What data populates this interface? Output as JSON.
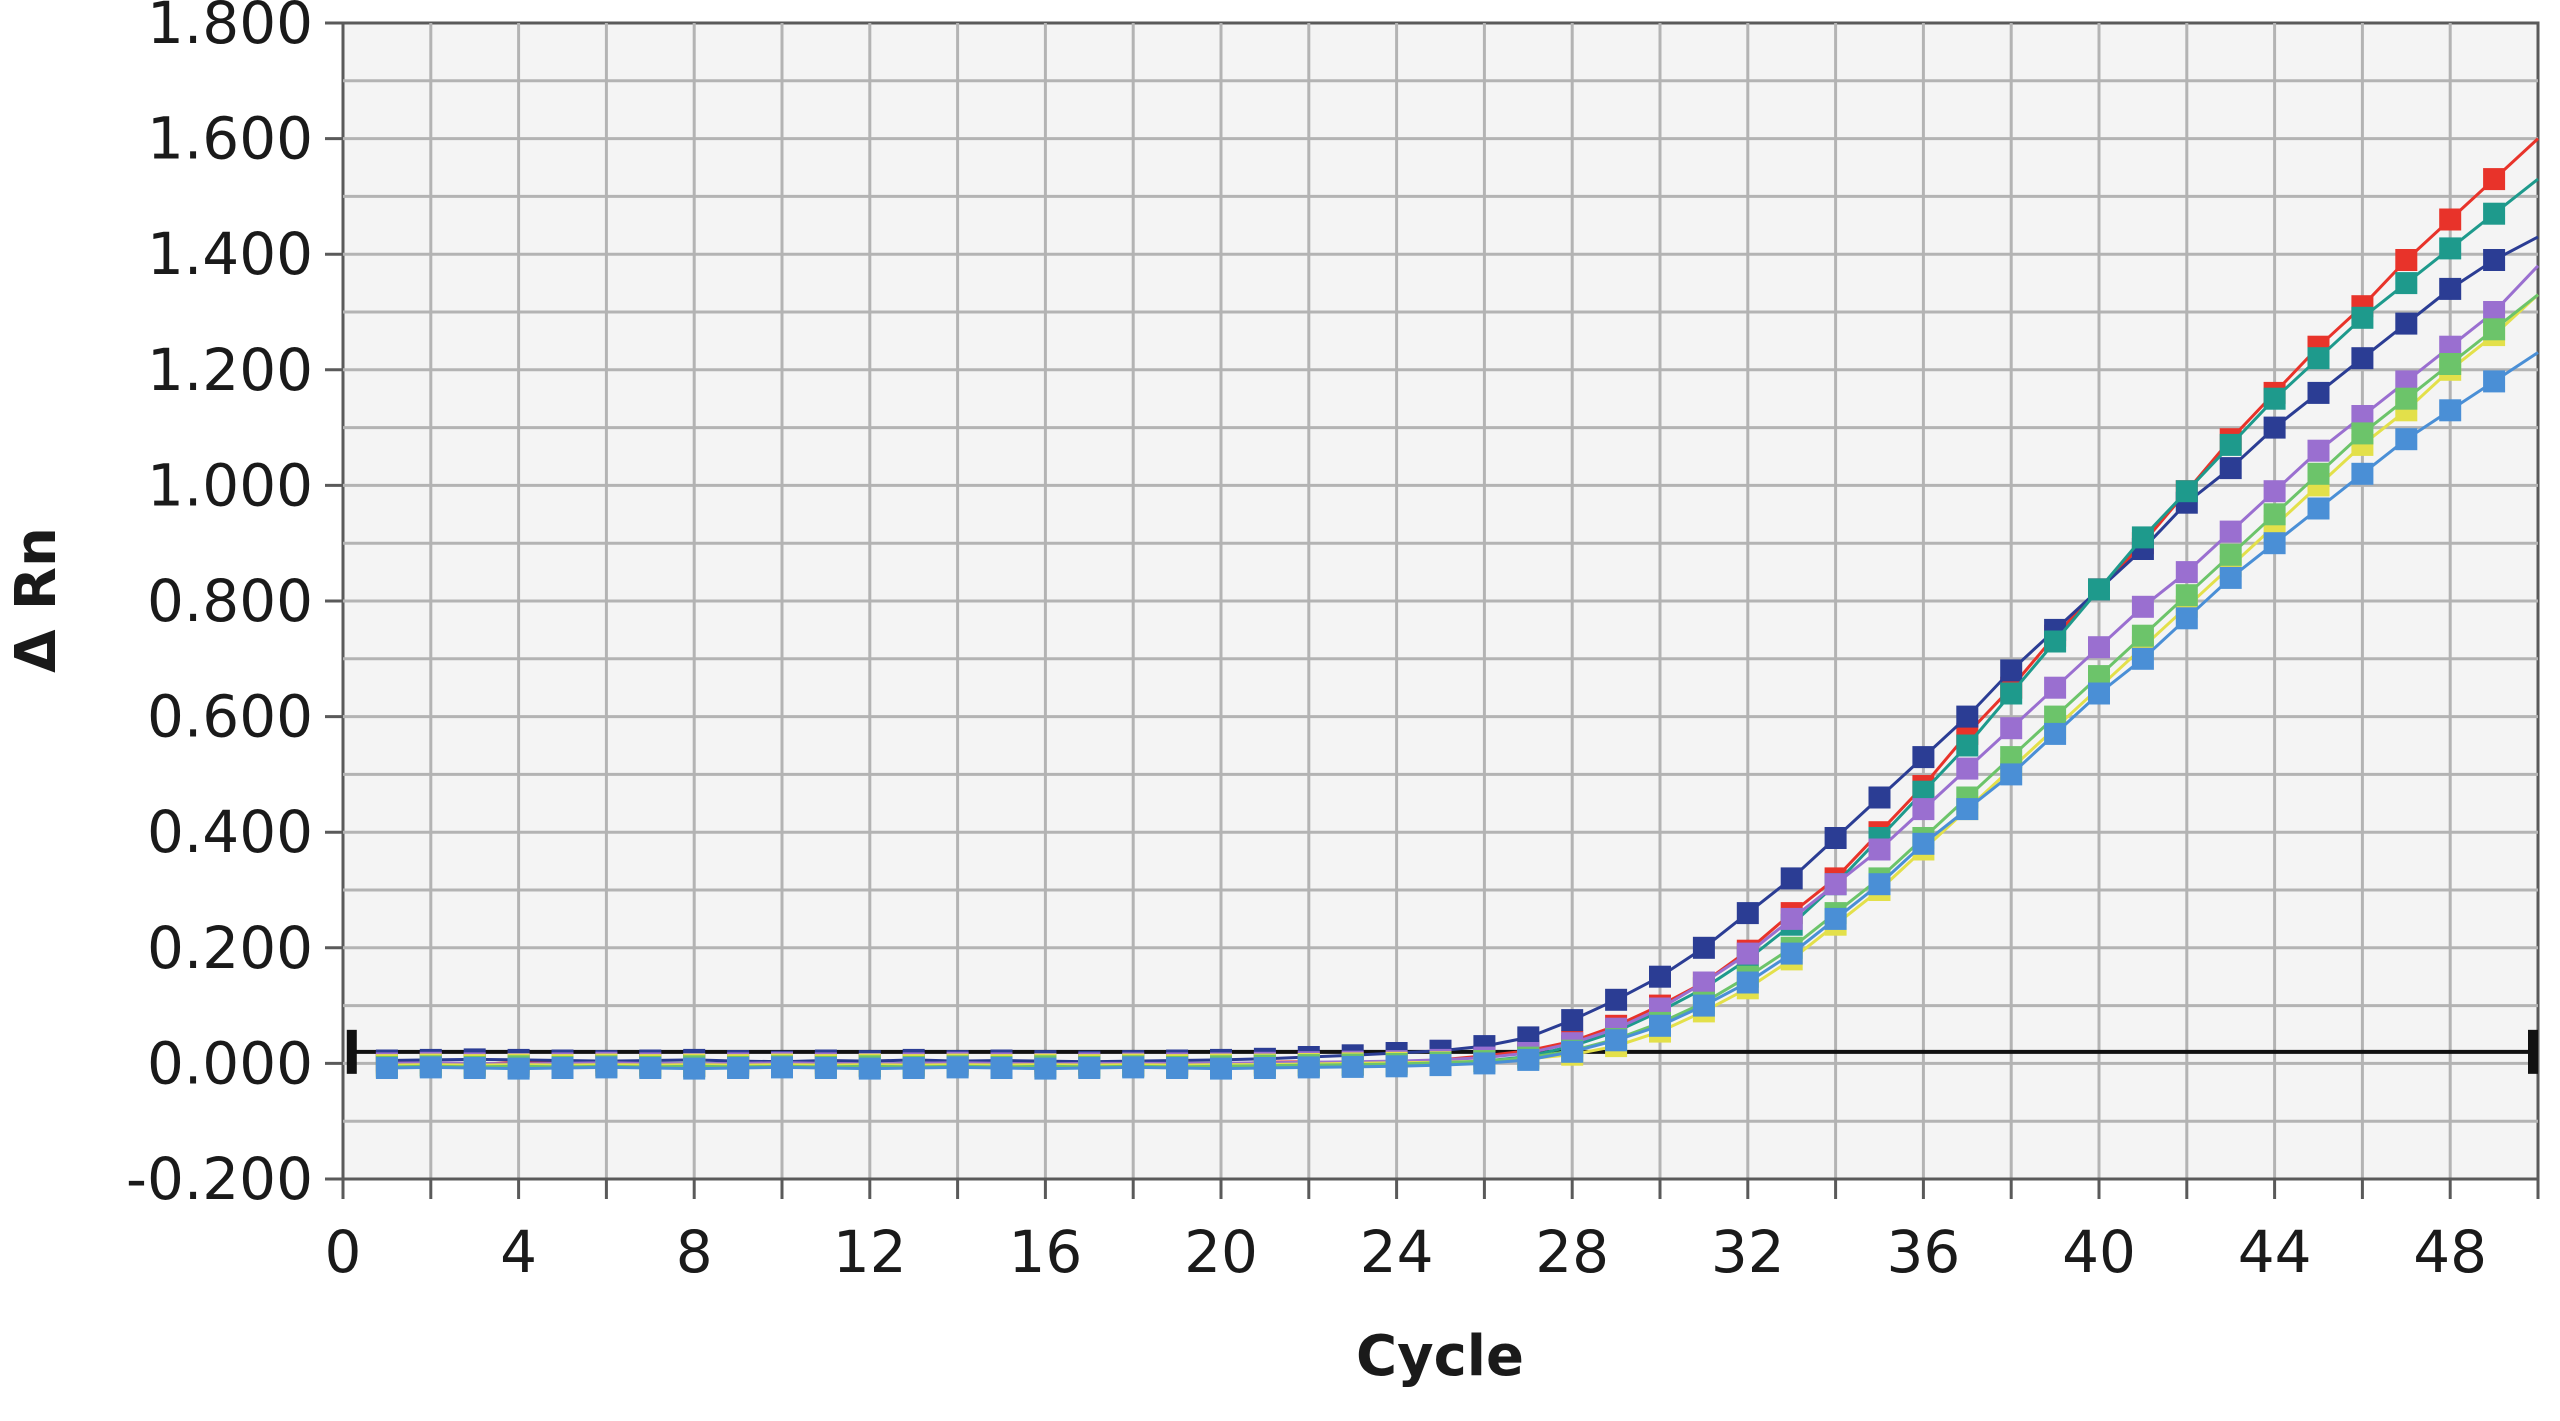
{
  "chart_data": {
    "type": "line",
    "title": "",
    "xlabel": "Cycle",
    "ylabel": "Δ Rn",
    "xlim": [
      0,
      50
    ],
    "ylim": [
      -0.2,
      1.8
    ],
    "xticks": [
      0,
      4,
      8,
      12,
      16,
      20,
      24,
      28,
      32,
      36,
      40,
      44,
      48
    ],
    "yticks": [
      -0.2,
      0.0,
      0.2,
      0.4,
      0.6,
      0.8,
      1.0,
      1.2,
      1.4,
      1.6,
      1.8
    ],
    "x_tick_labels": [
      "0",
      "4",
      "8",
      "12",
      "16",
      "20",
      "24",
      "28",
      "32",
      "36",
      "40",
      "44",
      "48"
    ],
    "y_tick_labels": [
      "-0.200",
      "0.000",
      "0.200",
      "0.400",
      "0.600",
      "0.800",
      "1.000",
      "1.200",
      "1.400",
      "1.600",
      "1.800"
    ],
    "grid": true,
    "marker": "square",
    "threshold": {
      "value": 0.02
    },
    "x": [
      1,
      2,
      3,
      4,
      5,
      6,
      7,
      8,
      9,
      10,
      11,
      12,
      13,
      14,
      15,
      16,
      17,
      18,
      19,
      20,
      21,
      22,
      23,
      24,
      25,
      26,
      27,
      28,
      29,
      30,
      31,
      32,
      33,
      34,
      35,
      36,
      37,
      38,
      39,
      40,
      41,
      42,
      43,
      44,
      45,
      46,
      47,
      48,
      49,
      50
    ],
    "series": [
      {
        "color": "#e8332a",
        "values": [
          0.002,
          0.001,
          -0.002,
          0.002,
          0.003,
          -0.003,
          -0.002,
          -0.004,
          0.001,
          0.002,
          0.001,
          -0.003,
          -0.002,
          -0.001,
          0.002,
          0.001,
          -0.001,
          -0.003,
          -0.002,
          -0.002,
          0.002,
          0.003,
          -0.001,
          0.002,
          0.006,
          0.013,
          0.022,
          0.038,
          0.065,
          0.1,
          0.14,
          0.195,
          0.26,
          0.32,
          0.4,
          0.48,
          0.57,
          0.65,
          0.74,
          0.82,
          0.9,
          0.99,
          1.08,
          1.16,
          1.24,
          1.31,
          1.39,
          1.46,
          1.53,
          1.6
        ]
      },
      {
        "color": "#2b3d94",
        "values": [
          0.005,
          0.006,
          0.007,
          0.006,
          0.005,
          0.004,
          0.005,
          0.006,
          0.004,
          0.003,
          0.005,
          0.004,
          0.006,
          0.004,
          0.005,
          0.004,
          0.003,
          0.004,
          0.005,
          0.006,
          0.008,
          0.011,
          0.014,
          0.018,
          0.022,
          0.03,
          0.045,
          0.075,
          0.11,
          0.15,
          0.2,
          0.26,
          0.32,
          0.39,
          0.46,
          0.53,
          0.6,
          0.68,
          0.75,
          0.82,
          0.89,
          0.97,
          1.03,
          1.1,
          1.16,
          1.22,
          1.28,
          1.34,
          1.39,
          1.43
        ]
      },
      {
        "color": "#1e9a8c",
        "values": [
          -0.004,
          -0.003,
          -0.004,
          -0.005,
          -0.004,
          -0.003,
          -0.004,
          -0.005,
          -0.004,
          -0.003,
          -0.004,
          -0.005,
          -0.004,
          -0.003,
          -0.004,
          -0.005,
          -0.003,
          -0.004,
          -0.005,
          -0.004,
          -0.003,
          -0.004,
          -0.003,
          -0.002,
          0.0,
          0.004,
          0.012,
          0.03,
          0.055,
          0.09,
          0.13,
          0.18,
          0.24,
          0.31,
          0.39,
          0.47,
          0.55,
          0.64,
          0.73,
          0.82,
          0.91,
          0.99,
          1.07,
          1.15,
          1.22,
          1.29,
          1.35,
          1.41,
          1.47,
          1.53
        ]
      },
      {
        "color": "#9a6fd0",
        "values": [
          0.0,
          0.001,
          0.0,
          -0.001,
          0.0,
          0.001,
          0.0,
          -0.001,
          0.0,
          0.001,
          0.0,
          -0.001,
          0.0,
          0.001,
          0.0,
          -0.001,
          0.0,
          0.0,
          0.0,
          0.0,
          0.001,
          0.002,
          0.003,
          0.004,
          0.006,
          0.01,
          0.018,
          0.035,
          0.06,
          0.095,
          0.14,
          0.19,
          0.25,
          0.31,
          0.37,
          0.44,
          0.51,
          0.58,
          0.65,
          0.72,
          0.79,
          0.85,
          0.92,
          0.99,
          1.06,
          1.12,
          1.18,
          1.24,
          1.3,
          1.38
        ]
      },
      {
        "color": "#e3e04a",
        "values": [
          -0.003,
          -0.002,
          -0.003,
          -0.002,
          -0.003,
          -0.002,
          -0.003,
          -0.002,
          -0.003,
          -0.002,
          -0.003,
          -0.002,
          -0.003,
          -0.002,
          -0.003,
          -0.002,
          -0.003,
          -0.002,
          -0.003,
          -0.002,
          -0.002,
          -0.001,
          0.0,
          0.001,
          0.002,
          0.004,
          0.008,
          0.015,
          0.03,
          0.055,
          0.09,
          0.13,
          0.18,
          0.24,
          0.3,
          0.37,
          0.44,
          0.51,
          0.58,
          0.65,
          0.72,
          0.79,
          0.86,
          0.93,
          1.0,
          1.07,
          1.13,
          1.2,
          1.26,
          1.33
        ]
      },
      {
        "color": "#6cc46a",
        "values": [
          -0.006,
          -0.005,
          -0.006,
          -0.005,
          -0.006,
          -0.005,
          -0.006,
          -0.005,
          -0.006,
          -0.005,
          -0.006,
          -0.005,
          -0.006,
          -0.005,
          -0.006,
          -0.005,
          -0.006,
          -0.005,
          -0.006,
          -0.005,
          -0.004,
          -0.003,
          -0.002,
          -0.001,
          0.001,
          0.004,
          0.01,
          0.022,
          0.042,
          0.07,
          0.105,
          0.15,
          0.2,
          0.26,
          0.32,
          0.39,
          0.46,
          0.53,
          0.6,
          0.67,
          0.74,
          0.81,
          0.88,
          0.95,
          1.02,
          1.09,
          1.15,
          1.21,
          1.27,
          1.33
        ]
      },
      {
        "color": "#4a8fd6",
        "values": [
          -0.008,
          -0.007,
          -0.008,
          -0.009,
          -0.008,
          -0.007,
          -0.008,
          -0.009,
          -0.008,
          -0.007,
          -0.008,
          -0.009,
          -0.008,
          -0.007,
          -0.008,
          -0.009,
          -0.008,
          -0.007,
          -0.008,
          -0.009,
          -0.008,
          -0.007,
          -0.006,
          -0.005,
          -0.003,
          0.0,
          0.006,
          0.02,
          0.04,
          0.065,
          0.1,
          0.14,
          0.19,
          0.25,
          0.31,
          0.38,
          0.44,
          0.5,
          0.57,
          0.64,
          0.7,
          0.77,
          0.84,
          0.9,
          0.96,
          1.02,
          1.08,
          1.13,
          1.18,
          1.23
        ]
      }
    ]
  }
}
